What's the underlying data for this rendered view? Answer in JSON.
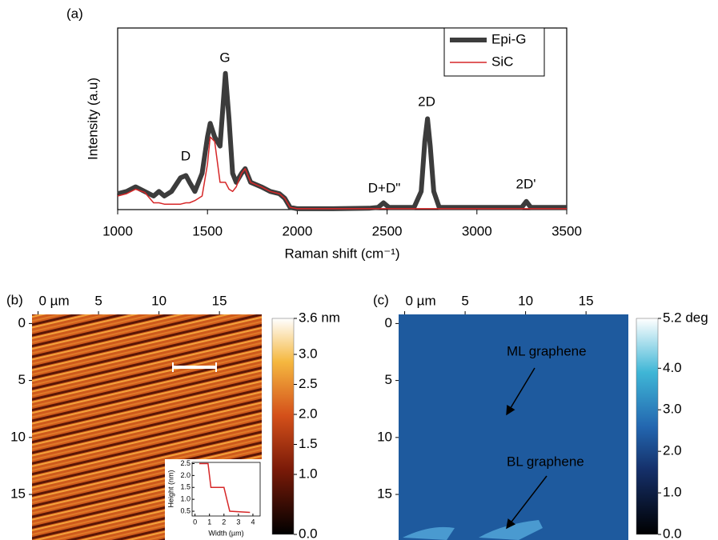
{
  "chart_data": [
    {
      "type": "line",
      "panel_label": "(a)",
      "xlabel": "Raman shift (cm⁻¹)",
      "ylabel": "Intensity (a.u)",
      "xlim": [
        1000,
        3500
      ],
      "xticks": [
        1000,
        1500,
        2000,
        2500,
        3000,
        3500
      ],
      "ylim": [
        0,
        4
      ],
      "legend": "upper right",
      "annotations": [
        "D",
        "G",
        "D+D\"",
        "2D",
        "2D'"
      ],
      "x": [
        1000,
        1050,
        1100,
        1150,
        1200,
        1230,
        1260,
        1300,
        1350,
        1380,
        1400,
        1430,
        1470,
        1500,
        1515,
        1540,
        1570,
        1600,
        1620,
        1640,
        1660,
        1690,
        1710,
        1740,
        1800,
        1850,
        1900,
        1930,
        1960,
        2000,
        2200,
        2400,
        2450,
        2480,
        2510,
        2650,
        2690,
        2710,
        2725,
        2740,
        2760,
        2790,
        3000,
        3250,
        3275,
        3300,
        3500
      ],
      "series": [
        {
          "name": "Epi-G",
          "color": "#3c3c3c",
          "values": [
            0.35,
            0.4,
            0.5,
            0.4,
            0.3,
            0.4,
            0.3,
            0.4,
            0.7,
            0.75,
            0.6,
            0.4,
            0.8,
            1.6,
            1.9,
            1.6,
            1.4,
            3.0,
            2.0,
            0.8,
            0.6,
            0.8,
            0.9,
            0.6,
            0.5,
            0.4,
            0.35,
            0.25,
            0.05,
            0.02,
            0.02,
            0.03,
            0.05,
            0.15,
            0.05,
            0.05,
            0.4,
            1.5,
            2.0,
            1.4,
            0.4,
            0.05,
            0.05,
            0.05,
            0.18,
            0.05,
            0.05
          ]
        },
        {
          "name": "SiC",
          "color": "#d62728",
          "values": [
            0.3,
            0.35,
            0.45,
            0.38,
            0.15,
            0.15,
            0.12,
            0.12,
            0.12,
            0.15,
            0.15,
            0.2,
            0.3,
            1.0,
            1.6,
            1.5,
            0.6,
            0.6,
            0.45,
            0.4,
            0.5,
            0.8,
            0.9,
            0.6,
            0.5,
            0.4,
            0.35,
            0.25,
            0.05,
            0.02,
            0.02,
            0.02,
            0.02,
            0.02,
            0.02,
            0.02,
            0.02,
            0.02,
            0.02,
            0.02,
            0.02,
            0.02,
            0.02,
            0.02,
            0.02,
            0.02,
            0.02
          ]
        }
      ]
    },
    {
      "type": "heatmap",
      "panel_label": "(b)",
      "xlim": [
        -0.5,
        18.5
      ],
      "ylim": [
        -0.8,
        19
      ],
      "xticks": [
        {
          "value": 0,
          "label": "0 µm"
        },
        5,
        10,
        15
      ],
      "yticks": [
        0,
        5,
        10,
        15
      ],
      "clim": [
        0,
        3.6
      ],
      "cticks": [
        {
          "value": 3.6,
          "label": "3.6 nm"
        },
        {
          "value": 3,
          "label": "3.0"
        },
        2.5,
        {
          "value": 2,
          "label": "2.0"
        },
        1.5,
        {
          "value": 1,
          "label": "1.0"
        },
        {
          "value": 0,
          "label": "0.0"
        }
      ],
      "inset": {
        "type": "line",
        "xlabel": "Width (µm)",
        "ylabel": "Height (nm)",
        "color": "#d62728",
        "xlim": [
          -0.2,
          4.5
        ],
        "ylim": [
          0.3,
          2.55
        ],
        "xticks": [
          0,
          1,
          2,
          3,
          4
        ],
        "yticks": [
          0.5,
          {
            "value": 1,
            "label": "1.0"
          },
          1.5,
          {
            "value": 2,
            "label": "2.0"
          },
          2.5
        ],
        "x": [
          0.3,
          0.9,
          1.0,
          1.1,
          2.0,
          2.2,
          2.4,
          3.8
        ],
        "values": [
          2.5,
          2.5,
          2.0,
          1.5,
          1.5,
          1.0,
          0.5,
          0.45
        ]
      }
    },
    {
      "type": "heatmap",
      "panel_label": "(c)",
      "xlim": [
        -0.5,
        18.5
      ],
      "ylim": [
        -0.8,
        19
      ],
      "xticks": [
        {
          "value": 0,
          "label": "0 µm"
        },
        5,
        10,
        15
      ],
      "yticks": [
        0,
        5,
        10,
        15
      ],
      "clim": [
        0,
        5.2
      ],
      "cticks": [
        {
          "value": 5.2,
          "label": "5.2 deg"
        },
        {
          "value": 4,
          "label": "4.0"
        },
        {
          "value": 3,
          "label": "3.0"
        },
        {
          "value": 2,
          "label": "2.0"
        },
        {
          "value": 1,
          "label": "1.0"
        },
        {
          "value": 0,
          "label": "0.0"
        }
      ],
      "annotations": [
        "ML graphene",
        "BL graphene"
      ]
    }
  ]
}
